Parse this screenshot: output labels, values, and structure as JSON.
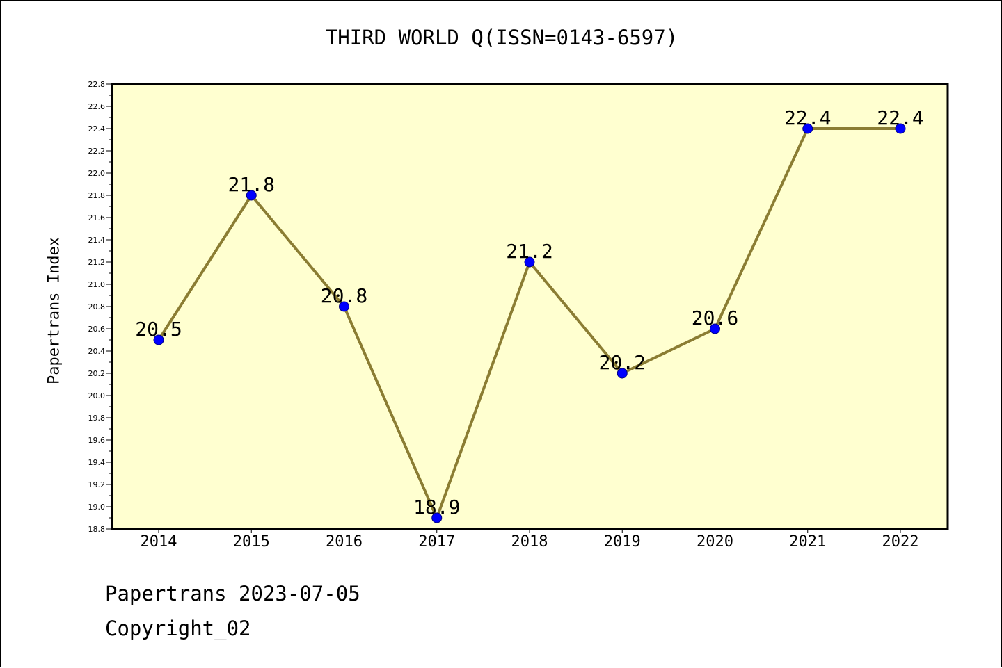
{
  "chart_data": {
    "type": "line",
    "title": "THIRD WORLD Q(ISSN=0143-6597)",
    "xlabel": "",
    "ylabel": "Papertrans Index",
    "categories": [
      "2014",
      "2015",
      "2016",
      "2017",
      "2018",
      "2019",
      "2020",
      "2021",
      "2022"
    ],
    "series": [
      {
        "values": [
          20.5,
          21.8,
          20.8,
          18.9,
          21.2,
          20.2,
          20.6,
          22.4,
          22.4
        ],
        "data_labels": [
          "20.5",
          "21.8",
          "20.8",
          "18.9",
          "21.2",
          "20.2",
          "20.6",
          "22.4",
          "22.4"
        ]
      }
    ],
    "ylim": [
      18.8,
      22.8
    ],
    "yticks": [
      "18.8",
      "19.0",
      "19.2",
      "19.4",
      "19.6",
      "19.8",
      "20.0",
      "20.2",
      "20.4",
      "20.6",
      "20.8",
      "21.0",
      "21.2",
      "21.4",
      "21.6",
      "21.8",
      "22.0",
      "22.2",
      "22.4",
      "22.6",
      "22.8"
    ],
    "grid": false,
    "legend": "none",
    "colors": {
      "plot_background": "#ffffd0",
      "line": "#8b7d33",
      "marker": "#0000ff",
      "marker_edge": "#000080"
    }
  },
  "footer": {
    "line1": "Papertrans 2023-07-05",
    "line2": "Copyright_02"
  }
}
